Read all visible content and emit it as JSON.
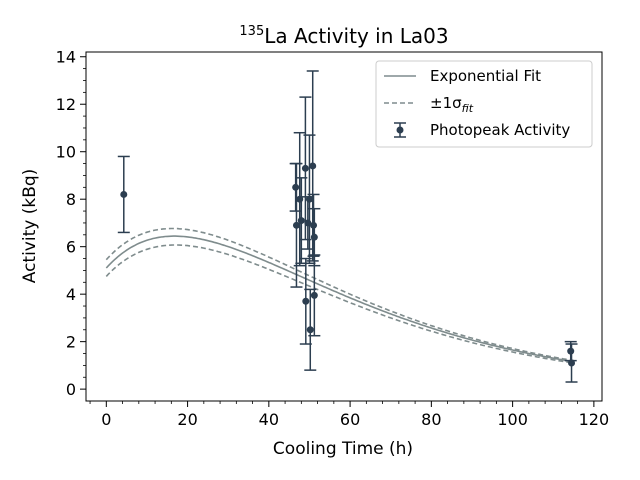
{
  "chart_data": {
    "type": "line",
    "title": {
      "isotope_mass": "135",
      "text": "La Activity in La03"
    },
    "xlabel": "Cooling Time (h)",
    "ylabel": "Activity (kBq)",
    "xlim": [
      -5,
      122
    ],
    "ylim": [
      -0.5,
      14.2
    ],
    "xticks": [
      "0",
      "20",
      "40",
      "60",
      "80",
      "100",
      "120"
    ],
    "yticks": [
      "0",
      "2",
      "4",
      "6",
      "8",
      "10",
      "12",
      "14"
    ],
    "legend": {
      "placement": "upper-right",
      "entries": [
        {
          "label": "Exponential Fit",
          "style": "solid"
        },
        {
          "label": "±1σ",
          "subscript": "fit",
          "style": "dashed"
        },
        {
          "label": "Photopeak Activity",
          "style": "errorbar"
        }
      ]
    },
    "fit_model": {
      "A_parent": 10.45,
      "lambda_parent": 0.0289,
      "lambda_daughter": 0.0357,
      "y0": 5.1,
      "band_low_factor": 0.95,
      "band_high_factor": 1.035,
      "band_y0_low": 4.75,
      "band_y0_high": 5.45
    },
    "series": [
      {
        "name": "Photopeak Activity",
        "points": [
          {
            "x": 4.3,
            "y": 8.2,
            "err": 1.6
          },
          {
            "x": 46.6,
            "y": 8.5,
            "err": 1.0
          },
          {
            "x": 46.8,
            "y": 6.9,
            "err": 2.6
          },
          {
            "x": 47.6,
            "y": 8.0,
            "err": 2.8
          },
          {
            "x": 48.0,
            "y": 7.1,
            "err": 1.8
          },
          {
            "x": 49.0,
            "y": 9.3,
            "err": 3.0
          },
          {
            "x": 49.1,
            "y": 3.7,
            "err": 1.8
          },
          {
            "x": 49.6,
            "y": 7.0,
            "err": 1.1
          },
          {
            "x": 50.0,
            "y": 8.0,
            "err": 2.7
          },
          {
            "x": 50.2,
            "y": 2.5,
            "err": 1.7
          },
          {
            "x": 50.8,
            "y": 9.4,
            "err": 4.0
          },
          {
            "x": 51.0,
            "y": 6.9,
            "err": 1.3
          },
          {
            "x": 51.2,
            "y": 6.4,
            "err": 1.2
          },
          {
            "x": 51.2,
            "y": 3.95,
            "err": 1.7
          },
          {
            "x": 114.3,
            "y": 1.6,
            "err": 0.4
          },
          {
            "x": 114.5,
            "y": 1.1,
            "err": 0.8
          }
        ]
      }
    ],
    "colors": {
      "fit": "#7f8c8d",
      "points": "#2c3e50"
    }
  }
}
